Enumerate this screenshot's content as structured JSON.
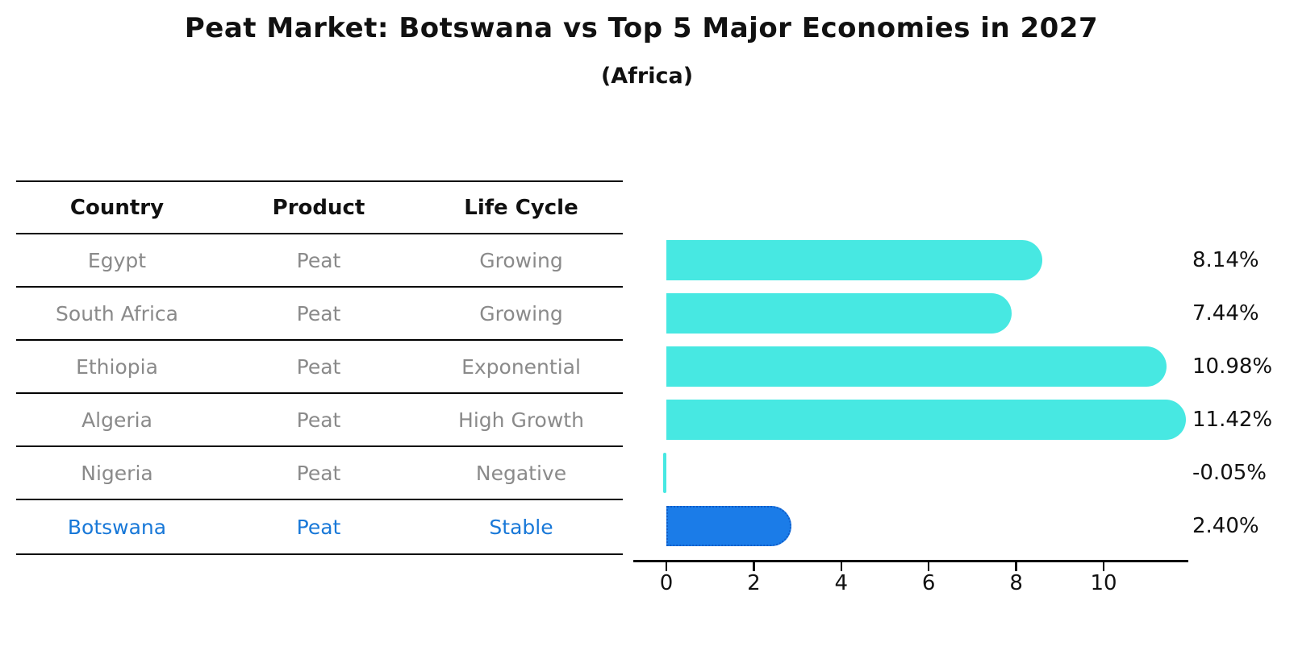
{
  "title": "Peat Market: Botswana vs Top 5 Major Economies in 2027",
  "subtitle": "(Africa)",
  "table": {
    "headers": [
      "Country",
      "Product",
      "Life Cycle"
    ],
    "rows": [
      {
        "country": "Egypt",
        "product": "Peat",
        "life_cycle": "Growing",
        "highlight": false
      },
      {
        "country": "South Africa",
        "product": "Peat",
        "life_cycle": "Growing",
        "highlight": false
      },
      {
        "country": "Ethiopia",
        "product": "Peat",
        "life_cycle": "Exponential",
        "highlight": false
      },
      {
        "country": "Algeria",
        "product": "Peat",
        "life_cycle": "High Growth",
        "highlight": false
      },
      {
        "country": "Nigeria",
        "product": "Peat",
        "life_cycle": "Negative",
        "highlight": false
      },
      {
        "country": "Botswana",
        "product": "Peat",
        "life_cycle": "Stable",
        "highlight": true
      }
    ]
  },
  "chart_data": {
    "type": "bar",
    "orientation": "horizontal",
    "title": "Peat Market: Botswana vs Top 5 Major Economies in 2027",
    "subtitle": "(Africa)",
    "categories": [
      "Egypt",
      "South Africa",
      "Ethiopia",
      "Algeria",
      "Nigeria",
      "Botswana"
    ],
    "values": [
      8.14,
      7.44,
      10.98,
      11.42,
      -0.05,
      2.4
    ],
    "value_labels": [
      "8.14%",
      "7.44%",
      "10.98%",
      "11.42%",
      "-0.05%",
      "2.40%"
    ],
    "x_ticks": [
      0,
      2,
      4,
      6,
      8,
      10
    ],
    "xlim": [
      -0.75,
      11.92
    ],
    "grid": false,
    "legend": false,
    "bar_color": "#47e8e2",
    "highlight_index": 5,
    "highlight_bar_color": "#1b7ce8",
    "highlight_bar_border_color": "#0f5cc8",
    "highlight_text_color": "#1878d8",
    "row_text_color": "#8a8a8a",
    "axis_color": "#000000"
  }
}
